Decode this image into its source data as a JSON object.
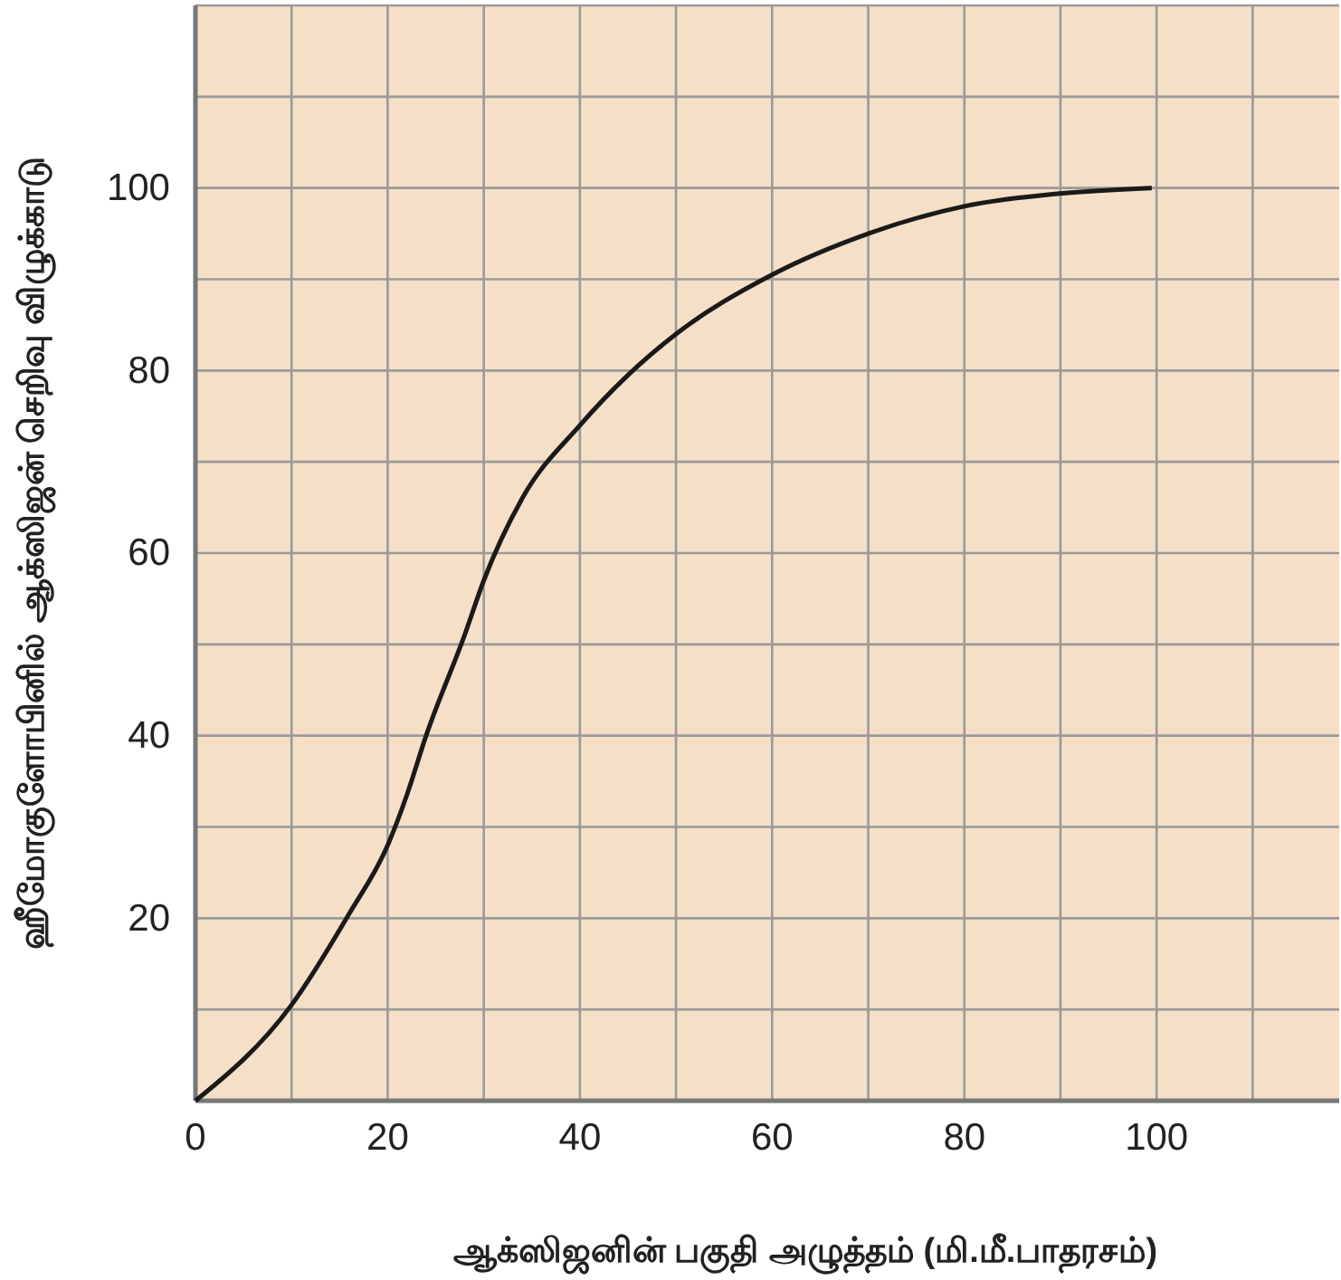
{
  "chart_data": {
    "type": "line",
    "xlabel": "ஆக்ஸிஜனின் பகுதி அழுத்தம் (மி.மீ.பாதரசம்)",
    "ylabel": "ஹீமோகுளோபினில் ஆக்ஸிஜன் செறிவு விழுக்காடு",
    "x": [
      0,
      10,
      16,
      20,
      22,
      24,
      28,
      30,
      34,
      40,
      45,
      50,
      60,
      70,
      80,
      90,
      99.5
    ],
    "series": [
      {
        "color": "#1a1a1a",
        "values": [
          0,
          10.5,
          20.5,
          28,
          33.5,
          40,
          51,
          57,
          66,
          74,
          79.5,
          84,
          90.5,
          95,
          98,
          99.4,
          100
        ]
      }
    ],
    "xlim": [
      0,
      119
    ],
    "ylim": [
      0,
      120
    ],
    "xticks": [
      0,
      {
        "value": 10,
        "label": null
      },
      20,
      {
        "value": 30,
        "label": null
      },
      40,
      {
        "value": 50,
        "label": null
      },
      60,
      {
        "value": 70,
        "label": null
      },
      80,
      {
        "value": 90,
        "label": null
      },
      100,
      {
        "value": 110,
        "label": null
      }
    ],
    "yticks": [
      {
        "value": 10,
        "label": null
      },
      20,
      {
        "value": 30,
        "label": null
      },
      40,
      {
        "value": 50,
        "label": null
      },
      60,
      {
        "value": 70,
        "label": null
      },
      80,
      {
        "value": 90,
        "label": null
      },
      100,
      {
        "value": 110,
        "label": null
      }
    ],
    "grid": true,
    "marker": "none",
    "line_style": "solid"
  }
}
